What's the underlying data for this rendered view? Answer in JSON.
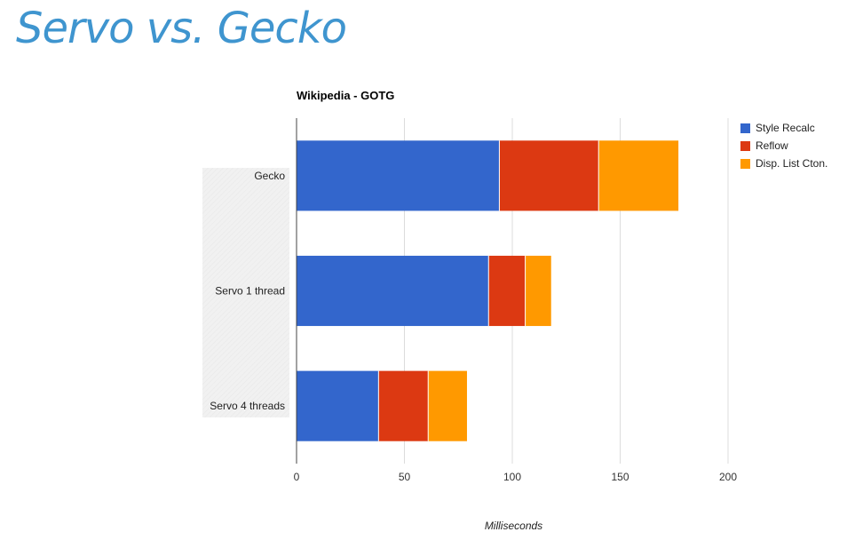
{
  "slide": {
    "title": "Servo vs. Gecko"
  },
  "chart_data": {
    "type": "bar",
    "orientation": "horizontal",
    "stacked": true,
    "title": "Wikipedia - GOTG",
    "xlabel": "Milliseconds",
    "ylabel": "",
    "categories": [
      "Gecko",
      "Servo 1 thread",
      "Servo 4 threads"
    ],
    "series": [
      {
        "name": "Style Recalc",
        "color": "#3366cc",
        "values": [
          94,
          89,
          38
        ]
      },
      {
        "name": "Reflow",
        "color": "#dc3912",
        "values": [
          46,
          17,
          23
        ]
      },
      {
        "name": "Disp. List Cton.",
        "color": "#ff9900",
        "values": [
          37,
          12,
          18
        ]
      }
    ],
    "xlim": [
      0,
      200
    ],
    "xticks": [
      "0",
      "50",
      "100",
      "150",
      "200"
    ],
    "grid": true,
    "legend": "right"
  }
}
